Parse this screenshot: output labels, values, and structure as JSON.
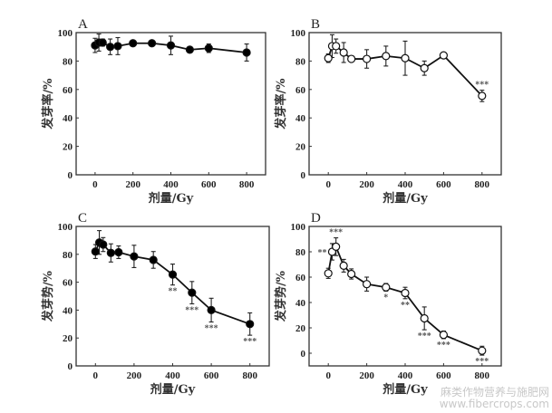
{
  "chart_data": [
    {
      "type": "line",
      "panel": "A",
      "marker": "filled-circle",
      "xlabel": "剂量/Gy",
      "ylabel": "发芽率/%",
      "xlim": [
        -100,
        900
      ],
      "ylim": [
        0,
        100
      ],
      "xticks": [
        0,
        200,
        400,
        600,
        800
      ],
      "yticks": [
        0,
        20,
        40,
        60,
        80,
        100
      ],
      "x": [
        0,
        20,
        40,
        80,
        120,
        200,
        300,
        400,
        500,
        600,
        800
      ],
      "y": [
        91,
        93,
        93,
        90,
        90.5,
        92.5,
        92.5,
        91,
        88,
        89,
        86
      ],
      "error": [
        5,
        6,
        2.5,
        5.5,
        6,
        2,
        1.5,
        6.5,
        2,
        3,
        6
      ],
      "significance": [
        "",
        "",
        "",
        "",
        "",
        "",
        "",
        "",
        "",
        "",
        ""
      ]
    },
    {
      "type": "line",
      "panel": "B",
      "marker": "open-circle",
      "xlabel": "剂量/Gy",
      "ylabel": "发芽率/%",
      "xlim": [
        -100,
        900
      ],
      "ylim": [
        0,
        100
      ],
      "xticks": [
        0,
        200,
        400,
        600,
        800
      ],
      "yticks": [
        0,
        20,
        40,
        60,
        80,
        100
      ],
      "x": [
        0,
        20,
        40,
        80,
        120,
        200,
        300,
        400,
        500,
        600,
        800
      ],
      "y": [
        82,
        90.5,
        90.5,
        86,
        81.5,
        81.5,
        83.5,
        82,
        75,
        84,
        55.5
      ],
      "error": [
        3,
        8,
        5,
        7,
        2,
        6.5,
        7,
        12,
        5,
        1.5,
        4
      ],
      "significance": [
        "",
        "",
        "",
        "",
        "",
        "",
        "",
        "",
        "",
        "",
        "***"
      ]
    },
    {
      "type": "line",
      "panel": "C",
      "marker": "filled-circle",
      "xlabel": "剂量/Gy",
      "ylabel": "发芽势/%",
      "xlim": [
        -100,
        900
      ],
      "ylim": [
        0,
        100
      ],
      "xticks": [
        0,
        200,
        400,
        600,
        800
      ],
      "yticks": [
        0,
        20,
        40,
        60,
        80,
        100
      ],
      "x": [
        0,
        20,
        40,
        80,
        120,
        200,
        300,
        400,
        500,
        600,
        800
      ],
      "y": [
        82,
        88.5,
        87,
        81,
        81.5,
        78.5,
        76,
        65.5,
        52.5,
        40,
        30
      ],
      "error": [
        5,
        8.5,
        5,
        6.5,
        4.5,
        8,
        6,
        7.5,
        8,
        8.5,
        8
      ],
      "significance": [
        "",
        "",
        "",
        "",
        "",
        "",
        "",
        "**",
        "***",
        "***",
        "***"
      ]
    },
    {
      "type": "line",
      "panel": "D",
      "marker": "open-circle",
      "xlabel": "剂量/Gy",
      "ylabel": "发芽势/%",
      "xlim": [
        -100,
        900
      ],
      "ylim": [
        -10,
        100
      ],
      "xticks": [
        0,
        200,
        400,
        600,
        800
      ],
      "yticks": [
        0,
        20,
        40,
        60,
        80,
        100
      ],
      "x": [
        0,
        20,
        40,
        80,
        120,
        200,
        300,
        400,
        500,
        600,
        800
      ],
      "y": [
        63,
        80,
        84,
        69,
        62.5,
        54.5,
        52,
        47.5,
        27.5,
        14.5,
        2
      ],
      "error": [
        4,
        6.5,
        7,
        5,
        4,
        5.5,
        3,
        4.5,
        9,
        3,
        3.5
      ],
      "significance": [
        "",
        "**",
        "***",
        "",
        "",
        "",
        "*",
        "**",
        "***",
        "***",
        "***"
      ]
    }
  ],
  "watermark": {
    "line1": "麻类作物营养与施肥网",
    "line2": "www.fibercrops.com"
  }
}
